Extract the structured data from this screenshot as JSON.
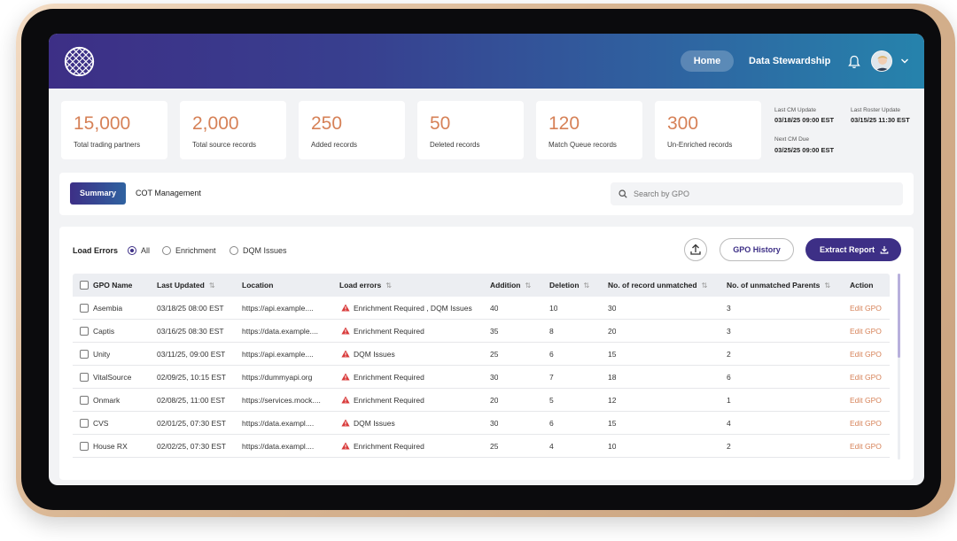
{
  "nav": {
    "home": "Home",
    "data_stewardship": "Data Stewardship"
  },
  "stats": [
    {
      "value": "15,000",
      "label": "Total trading partners"
    },
    {
      "value": "2,000",
      "label": "Total source records"
    },
    {
      "value": "250",
      "label": "Added records"
    },
    {
      "value": "50",
      "label": "Deleted records"
    },
    {
      "value": "120",
      "label": "Match Queue records"
    },
    {
      "value": "300",
      "label": "Un-Enriched records"
    }
  ],
  "meta": {
    "last_cm_update_label": "Last CM Update",
    "last_cm_update": "03/18/25 09:00 EST",
    "last_roster_update_label": "Last Roster Update",
    "last_roster_update": "03/15/25 11:30 EST",
    "next_cm_due_label": "Next CM Due",
    "next_cm_due": "03/25/25 09:00 EST"
  },
  "tabs": {
    "summary": "Summary",
    "cot": "COT Management"
  },
  "search": {
    "placeholder": "Search by GPO"
  },
  "filters": {
    "label": "Load Errors",
    "all": "All",
    "enrichment": "Enrichment",
    "dqm": "DQM Issues"
  },
  "buttons": {
    "gpo_history": "GPO History",
    "extract_report": "Extract Report"
  },
  "columns": [
    "GPO Name",
    "Last Updated",
    "Location",
    "Load errors",
    "Addition",
    "Deletion",
    "No. of record unmatched",
    "No. of unmatched Parents",
    "Action"
  ],
  "rows": [
    {
      "name": "Asembia",
      "updated": "03/18/25 08:00 EST",
      "location": "https://api.example....",
      "errors": "Enrichment Required , DQM Issues",
      "addition": "40",
      "deletion": "10",
      "unmatched": "30",
      "parents": "3",
      "action": "Edit GPO"
    },
    {
      "name": "Captis",
      "updated": "03/16/25 08:30 EST",
      "location": "https://data.example....",
      "errors": "Enrichment Required",
      "addition": "35",
      "deletion": "8",
      "unmatched": "20",
      "parents": "3",
      "action": "Edit GPO"
    },
    {
      "name": "Unity",
      "updated": "03/11/25, 09:00 EST",
      "location": "https://api.example....",
      "errors": "DQM Issues",
      "addition": "25",
      "deletion": "6",
      "unmatched": "15",
      "parents": "2",
      "action": "Edit GPO"
    },
    {
      "name": "VitalSource",
      "updated": "02/09/25, 10:15 EST",
      "location": "https://dummyapi.org",
      "errors": "Enrichment Required",
      "addition": "30",
      "deletion": "7",
      "unmatched": "18",
      "parents": "6",
      "action": "Edit GPO"
    },
    {
      "name": "Onmark",
      "updated": "02/08/25, 11:00 EST",
      "location": "https://services.mock....",
      "errors": "Enrichment Required",
      "addition": "20",
      "deletion": "5",
      "unmatched": "12",
      "parents": "1",
      "action": "Edit GPO"
    },
    {
      "name": "CVS",
      "updated": "02/01/25, 07:30 EST",
      "location": "https://data.exampl....",
      "errors": "DQM Issues",
      "addition": "30",
      "deletion": "6",
      "unmatched": "15",
      "parents": "4",
      "action": "Edit GPO"
    },
    {
      "name": "House RX",
      "updated": "02/02/25, 07:30 EST",
      "location": "https://data.exampl....",
      "errors": "Enrichment Required",
      "addition": "25",
      "deletion": "4",
      "unmatched": "10",
      "parents": "2",
      "action": "Edit GPO"
    }
  ],
  "colors": {
    "accent": "#3d2f86",
    "stat_number": "#d68157",
    "warning": "#d93b3b"
  },
  "icons": [
    "globe-logo-icon",
    "bell-icon",
    "chevron-down-icon",
    "search-icon",
    "upload-icon",
    "download-icon",
    "warning-icon",
    "sort-icon"
  ]
}
